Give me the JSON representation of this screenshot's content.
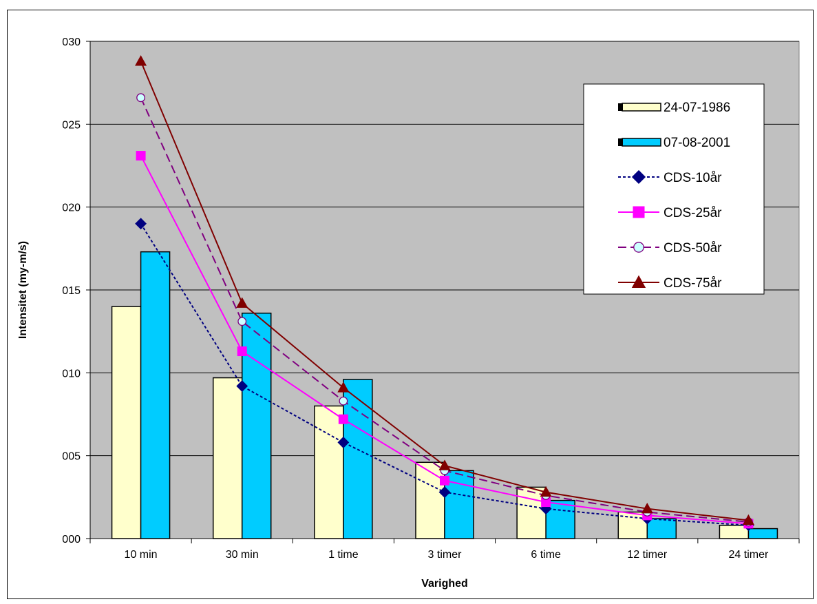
{
  "chart_data": {
    "type": "bar",
    "title": "",
    "xlabel": "Varighed",
    "ylabel": "Intensitet (my-m/s)",
    "categories": [
      "10 min",
      "30 min",
      "1 time",
      "3 timer",
      "6 time",
      "12 timer",
      "24 timer"
    ],
    "ylim": [
      0,
      30
    ],
    "yticks": [
      0,
      5,
      10,
      15,
      20,
      25,
      30
    ],
    "ytick_labels": [
      "000",
      "005",
      "010",
      "015",
      "020",
      "025",
      "030"
    ],
    "grid": true,
    "legend_position": "top-right",
    "bar_series": [
      {
        "name": "24-07-1986",
        "color": "#ffffcc",
        "values": [
          14.0,
          9.7,
          8.0,
          4.6,
          3.1,
          1.6,
          0.8
        ]
      },
      {
        "name": "07-08-2001",
        "color": "#00ccff",
        "values": [
          17.3,
          13.6,
          9.6,
          4.1,
          2.3,
          1.2,
          0.6
        ]
      }
    ],
    "line_series": [
      {
        "name": "CDS-10år",
        "color": "#000080",
        "marker": "diamond",
        "dash": "short",
        "values": [
          19.0,
          9.2,
          5.8,
          2.8,
          1.8,
          1.2,
          0.8
        ]
      },
      {
        "name": "CDS-25år",
        "color": "#ff00ff",
        "marker": "square",
        "dash": "solid",
        "values": [
          23.1,
          11.3,
          7.2,
          3.5,
          2.2,
          1.4,
          0.9
        ]
      },
      {
        "name": "CDS-50år",
        "color": "#800080",
        "marker": "circle",
        "dash": "long",
        "values": [
          26.6,
          13.1,
          8.3,
          4.1,
          2.6,
          1.6,
          1.0
        ]
      },
      {
        "name": "CDS-75år",
        "color": "#800000",
        "marker": "triangle",
        "dash": "solid",
        "values": [
          28.8,
          14.2,
          9.1,
          4.4,
          2.8,
          1.8,
          1.1
        ]
      }
    ]
  }
}
